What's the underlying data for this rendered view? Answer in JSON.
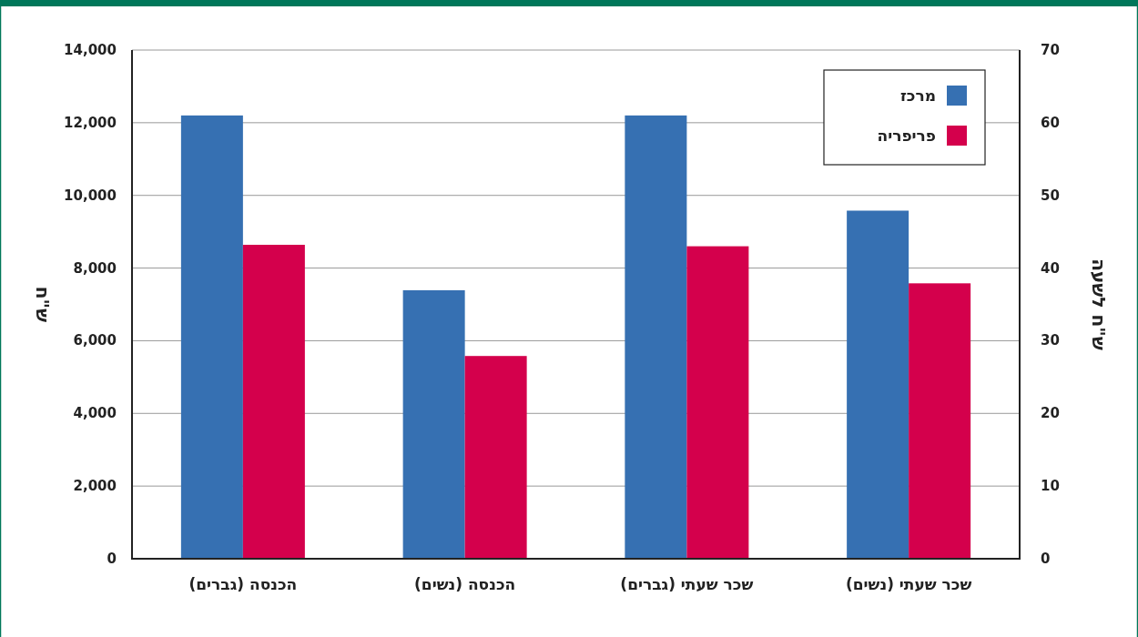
{
  "chart_data": {
    "type": "bar",
    "ylabel": "ש\"ח",
    "y2label": "ש\"ח לשעה",
    "categories": [
      "הכנסה (גברים)",
      "הכנסה (נשים)",
      "שכר שעתי (גברים)",
      "שכר שעתי (נשים)"
    ],
    "series": [
      {
        "name": "מרכז",
        "color": "#3670b2",
        "values": [
          12200,
          7390,
          null,
          null
        ]
      },
      {
        "name": "פריפריה",
        "color": "#d4004c",
        "values": [
          8640,
          5580,
          null,
          null
        ]
      },
      {
        "color": "#3670b2",
        "axis": "y2",
        "values": [
          null,
          null,
          61.0,
          47.9
        ]
      },
      {
        "color": "#d4004c",
        "axis": "y2",
        "values": [
          null,
          null,
          43.0,
          37.9
        ]
      }
    ],
    "ylim": [
      0,
      14000
    ],
    "yticks": [
      {
        "value": 0,
        "label": "0"
      },
      {
        "value": 2000,
        "label": "2,000"
      },
      {
        "value": 4000,
        "label": "4,000"
      },
      {
        "value": 6000,
        "label": "6,000"
      },
      {
        "value": 8000,
        "label": "8,000"
      },
      {
        "value": 10000,
        "label": "10,000"
      },
      {
        "value": 12000,
        "label": "12,000"
      },
      {
        "value": 14000,
        "label": "14,000"
      }
    ],
    "y2lim": [
      0,
      70
    ],
    "y2ticks": [
      0,
      10,
      20,
      30,
      40,
      50,
      60,
      70
    ],
    "grid": "y",
    "legend": "top right"
  }
}
